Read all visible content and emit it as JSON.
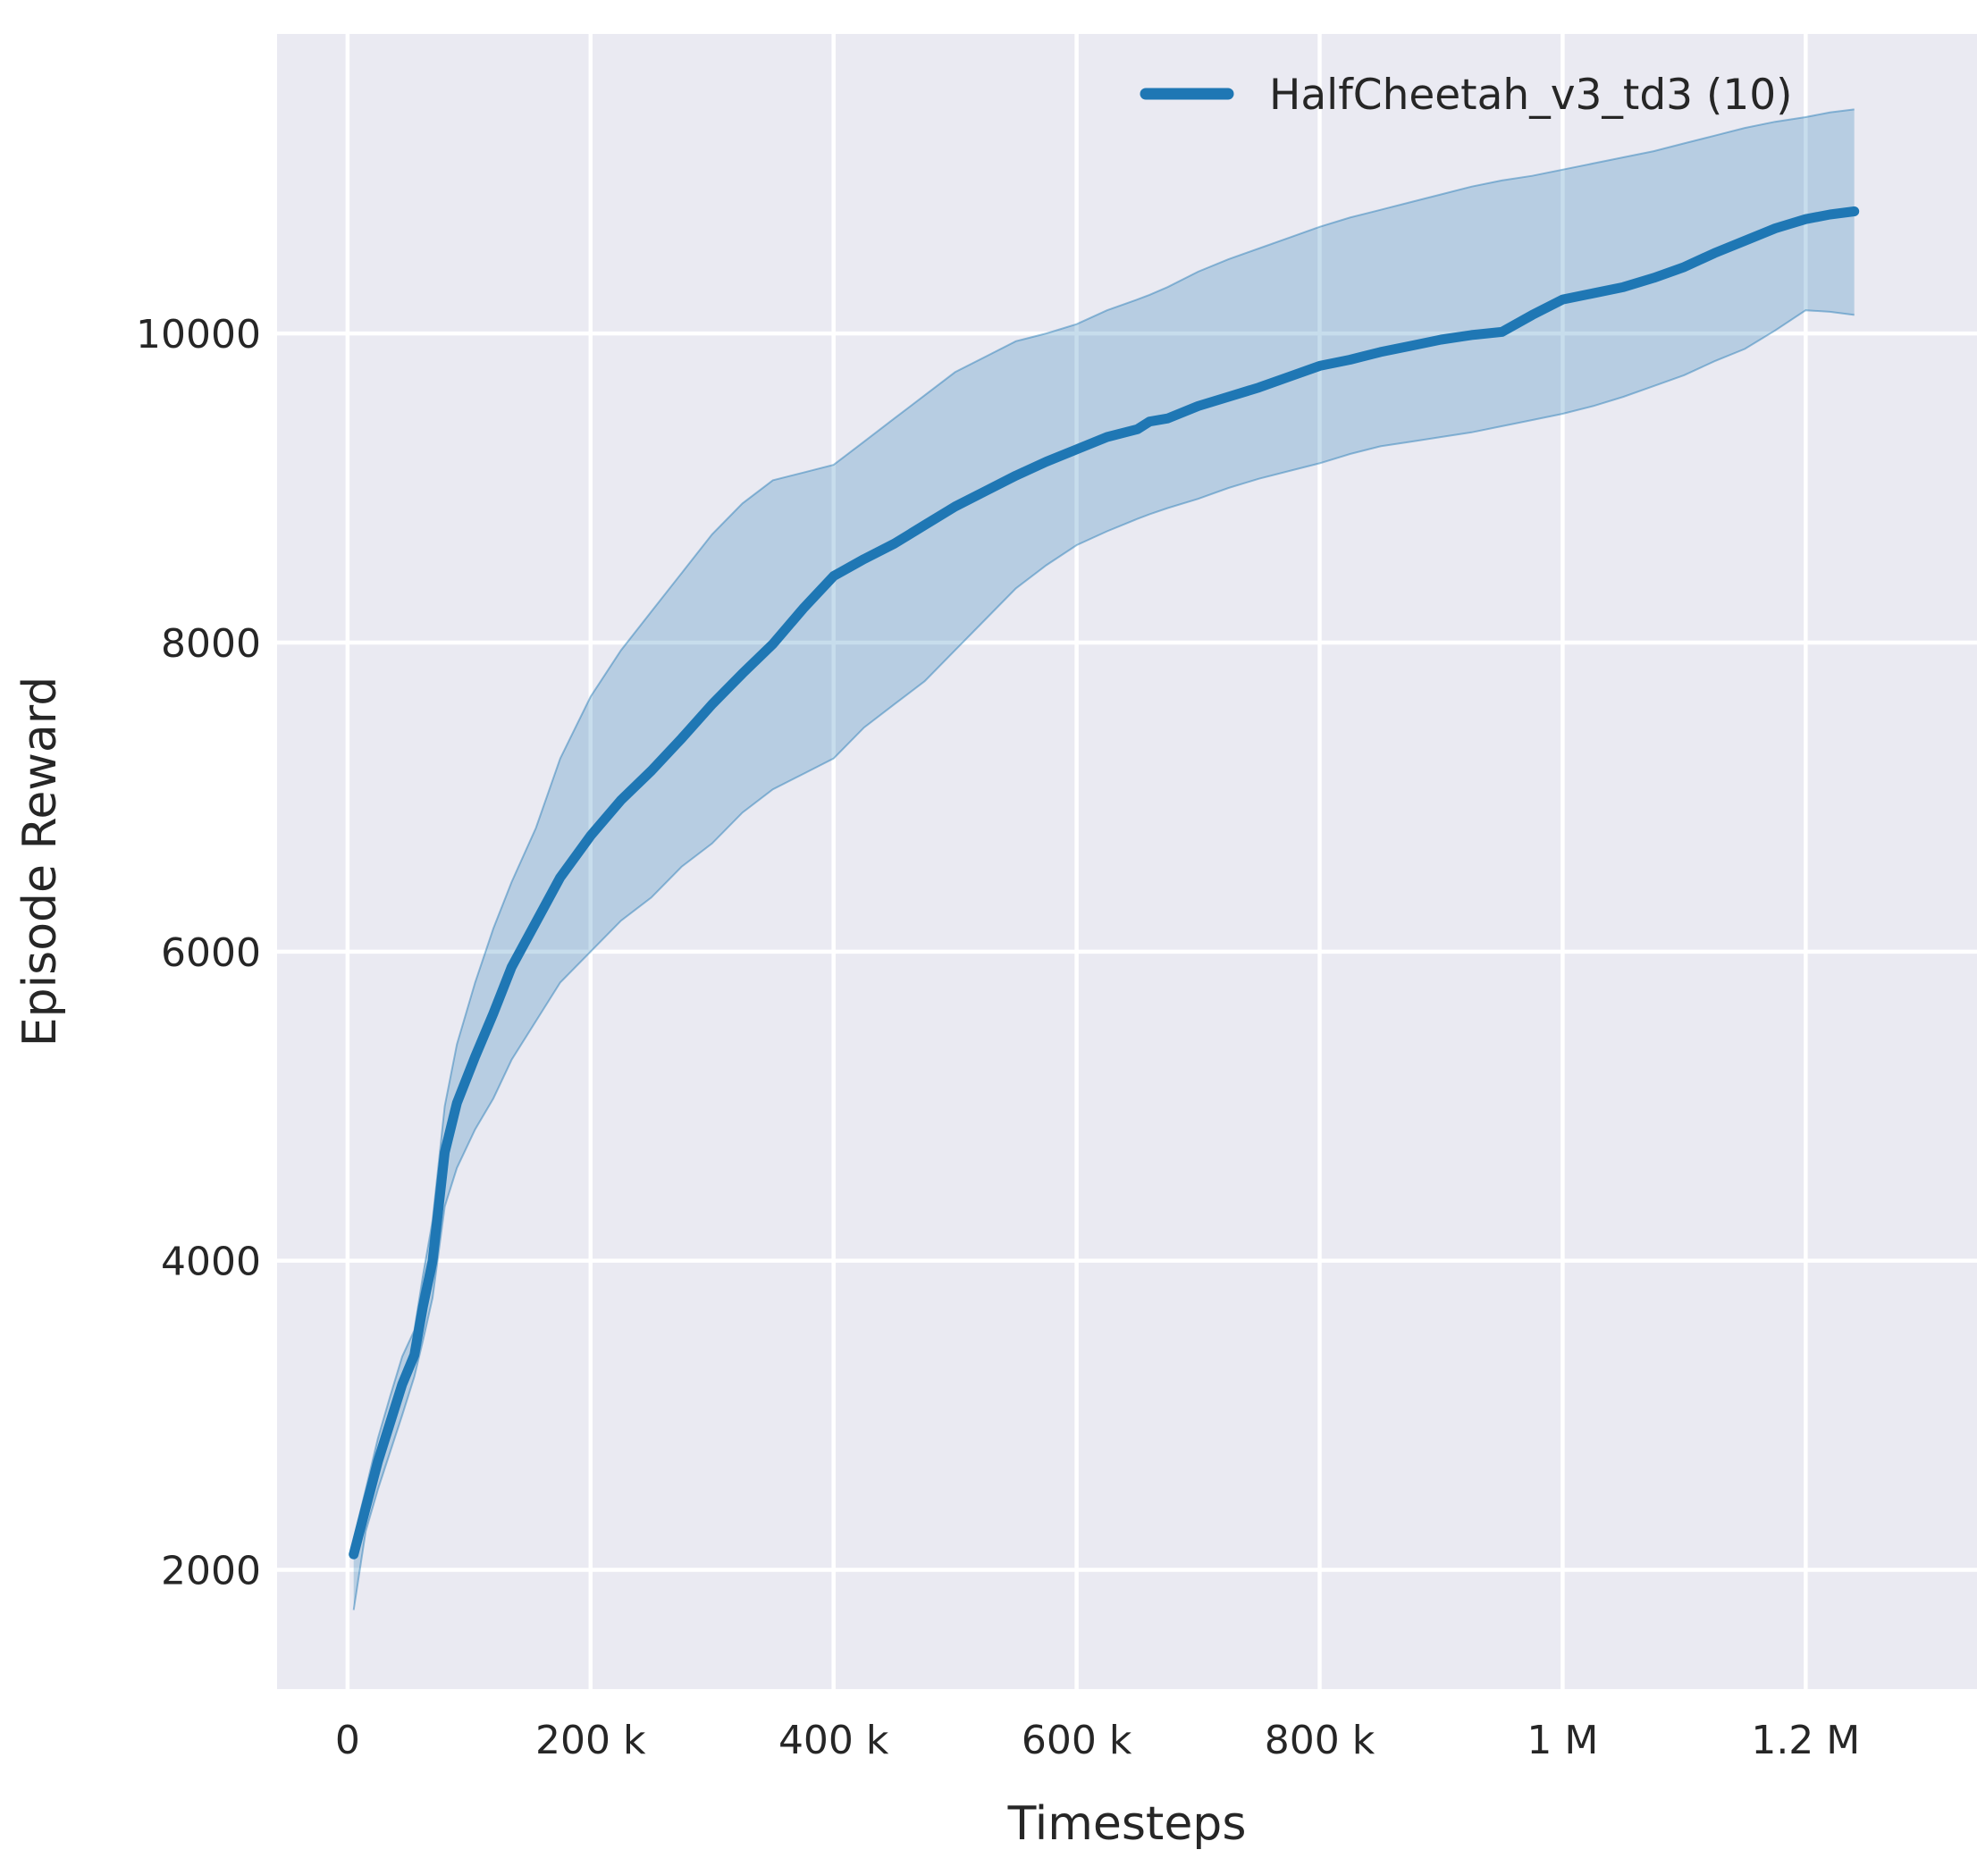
{
  "chart_data": {
    "type": "line",
    "title": "",
    "xlabel": "Timesteps",
    "ylabel": "Episode Reward",
    "grid": true,
    "legend_position": "upper right",
    "legend": [
      {
        "label": "HalfCheetah_v3_td3 (10)",
        "color": "#1f77b4"
      }
    ],
    "colors": {
      "plot_bg": "#eaeaf2",
      "grid": "#ffffff",
      "text": "#262626",
      "line": "#1f77b4",
      "band": "#1f77b4"
    },
    "band_opacity": 0.25,
    "xlim": [
      -58000,
      1341000
    ],
    "ylim": [
      1228,
      11938
    ],
    "x_ticks": [
      0,
      200000,
      400000,
      600000,
      800000,
      1000000,
      1200000
    ],
    "x_tick_labels": [
      "0",
      "200 k",
      "400 k",
      "600 k",
      "800 k",
      "1 M",
      "1.2 M"
    ],
    "y_ticks": [
      2000,
      4000,
      6000,
      8000,
      10000
    ],
    "y_tick_labels": [
      "2000",
      "4000",
      "6000",
      "8000",
      "10000"
    ],
    "series": [
      {
        "name": "HalfCheetah_v3_td3 (10)",
        "color": "#1f77b4",
        "x": [
          5000,
          15000,
          25000,
          35000,
          45000,
          55000,
          62000,
          70000,
          80000,
          90000,
          105000,
          120000,
          135000,
          155000,
          175000,
          200000,
          225000,
          250000,
          275000,
          300000,
          325000,
          350000,
          375000,
          400000,
          425000,
          450000,
          475000,
          500000,
          525000,
          550000,
          575000,
          600000,
          625000,
          650000,
          660000,
          675000,
          700000,
          725000,
          750000,
          775000,
          800000,
          825000,
          850000,
          875000,
          900000,
          925000,
          950000,
          975000,
          1000000,
          1025000,
          1050000,
          1075000,
          1100000,
          1125000,
          1150000,
          1175000,
          1200000,
          1220000,
          1240000
        ],
        "mean": [
          2100,
          2400,
          2700,
          2950,
          3200,
          3390,
          3700,
          4000,
          4700,
          5020,
          5320,
          5600,
          5900,
          6190,
          6480,
          6750,
          6980,
          7170,
          7380,
          7600,
          7800,
          7990,
          8220,
          8430,
          8540,
          8640,
          8760,
          8880,
          8980,
          9080,
          9170,
          9250,
          9330,
          9380,
          9430,
          9450,
          9530,
          9590,
          9650,
          9720,
          9790,
          9830,
          9880,
          9920,
          9960,
          9990,
          10010,
          10120,
          10220,
          10260,
          10300,
          10360,
          10430,
          10520,
          10600,
          10680,
          10740,
          10770,
          10790
        ],
        "lower": [
          1740,
          2250,
          2520,
          2760,
          3000,
          3250,
          3480,
          3760,
          4350,
          4600,
          4850,
          5050,
          5300,
          5550,
          5800,
          6000,
          6200,
          6350,
          6550,
          6700,
          6900,
          7050,
          7150,
          7250,
          7450,
          7600,
          7750,
          7950,
          8150,
          8350,
          8500,
          8630,
          8720,
          8800,
          8830,
          8870,
          8930,
          9000,
          9060,
          9110,
          9160,
          9220,
          9270,
          9300,
          9330,
          9360,
          9400,
          9440,
          9480,
          9530,
          9590,
          9660,
          9730,
          9820,
          9900,
          10020,
          10150,
          10140,
          10120
        ],
        "upper": [
          2200,
          2520,
          2850,
          3120,
          3380,
          3550,
          3900,
          4260,
          5000,
          5400,
          5800,
          6150,
          6450,
          6800,
          7250,
          7650,
          7950,
          8200,
          8450,
          8700,
          8900,
          9050,
          9100,
          9150,
          9300,
          9450,
          9600,
          9750,
          9850,
          9950,
          10000,
          10060,
          10150,
          10220,
          10250,
          10300,
          10400,
          10480,
          10550,
          10620,
          10690,
          10750,
          10800,
          10850,
          10900,
          10950,
          10990,
          11020,
          11060,
          11100,
          11140,
          11180,
          11230,
          11280,
          11330,
          11370,
          11400,
          11430,
          11450
        ]
      }
    ]
  }
}
